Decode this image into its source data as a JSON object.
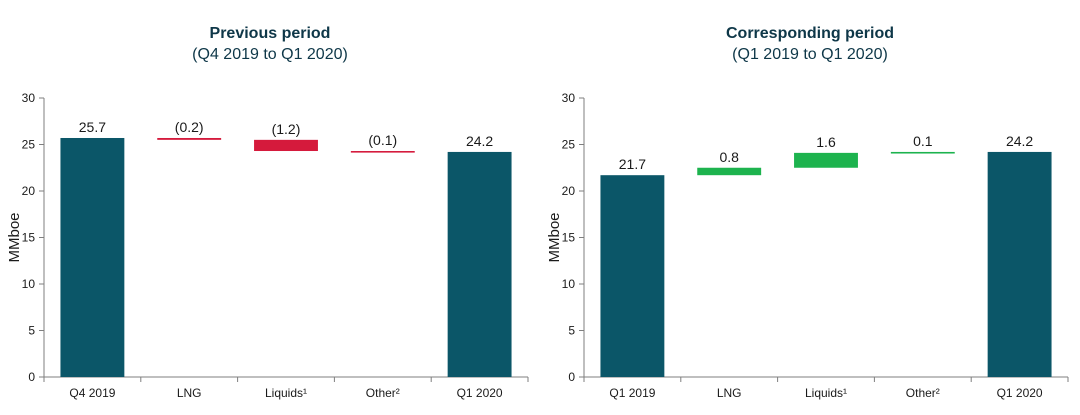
{
  "chart_data": [
    {
      "type": "waterfall",
      "title": "Previous period",
      "subtitle": "(Q4 2019 to Q1 2020)",
      "ylabel": "MMboe",
      "ylim": [
        0,
        30
      ],
      "yticks": [
        "0",
        "5",
        "10",
        "15",
        "20",
        "25",
        "30"
      ],
      "categories": [
        "Q4 2019",
        "LNG",
        "Liquids¹",
        "Other²",
        "Q1 2020"
      ],
      "bars": [
        {
          "kind": "total",
          "start": 0,
          "end": 25.7,
          "label": "25.7"
        },
        {
          "kind": "delta",
          "start": 25.7,
          "end": 25.5,
          "label": "(0.2)"
        },
        {
          "kind": "delta",
          "start": 25.5,
          "end": 24.3,
          "label": "(1.2)"
        },
        {
          "kind": "delta",
          "start": 24.3,
          "end": 24.2,
          "label": "(0.1)"
        },
        {
          "kind": "total",
          "start": 0,
          "end": 24.2,
          "label": "24.2"
        }
      ]
    },
    {
      "type": "waterfall",
      "title": "Corresponding period",
      "subtitle": "(Q1 2019 to Q1 2020)",
      "ylabel": "MMboe",
      "ylim": [
        0,
        30
      ],
      "yticks": [
        "0",
        "5",
        "10",
        "15",
        "20",
        "25",
        "30"
      ],
      "categories": [
        "Q1 2019",
        "LNG",
        "Liquids¹",
        "Other²",
        "Q1 2020"
      ],
      "bars": [
        {
          "kind": "total",
          "start": 0,
          "end": 21.7,
          "label": "21.7"
        },
        {
          "kind": "delta",
          "start": 21.7,
          "end": 22.5,
          "label": "0.8"
        },
        {
          "kind": "delta",
          "start": 22.5,
          "end": 24.1,
          "label": "1.6"
        },
        {
          "kind": "delta",
          "start": 24.1,
          "end": 24.2,
          "label": "0.1"
        },
        {
          "kind": "total",
          "start": 0,
          "end": 24.2,
          "label": "24.2"
        }
      ]
    }
  ],
  "colors": {
    "total": "#0b5668",
    "decrease": "#d51a3c",
    "increase": "#1db34e",
    "axis": "#7f7f7f",
    "title": "#0e3748"
  }
}
